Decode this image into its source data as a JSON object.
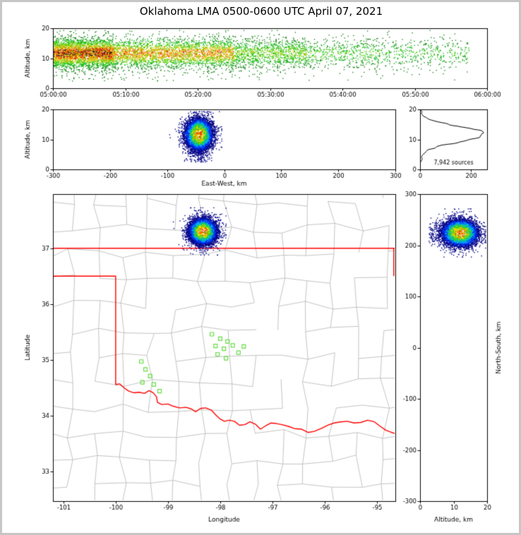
{
  "title": "Oklahoma LMA 0500-0600 UTC April 07, 2021",
  "colors": {
    "background": "#ffffff",
    "frame": "#c6c6c6",
    "axis": "#000000",
    "county_line": "#b4b4b4",
    "state_border": "#ff0000",
    "station_marker": "#66dd44",
    "histogram_line": "#000000",
    "spatial_palette": [
      "#000088",
      "#0033ee",
      "#00aaff",
      "#00cc88",
      "#44cc00",
      "#aadd00",
      "#ffee00",
      "#ffaa00",
      "#ff5500",
      "#ee0000"
    ],
    "time_palette": [
      "#007700",
      "#009900",
      "#00bb00",
      "#55cc00",
      "#99cc00",
      "#ddcc00",
      "#ffaa00",
      "#ff4400",
      "#dd0000",
      "#111111"
    ]
  },
  "panels": {
    "time_height": {
      "ylabel": "Altitude, km",
      "xtick_labels": [
        "05:00:00",
        "05:10:00",
        "05:20:00",
        "05:30:00",
        "05:40:00",
        "05:50:00",
        "06:00:00"
      ],
      "xtick_seconds": [
        0,
        600,
        1200,
        1800,
        2400,
        3000,
        3600
      ],
      "yticks": [
        0,
        10,
        20
      ],
      "xlim_seconds": [
        0,
        3600
      ],
      "ylim": [
        0,
        20
      ]
    },
    "east_west": {
      "ylabel": "Altitude, km",
      "xlabel": "East-West, km",
      "xticks": [
        -300,
        -200,
        -100,
        0,
        100,
        200,
        300
      ],
      "yticks": [
        0,
        10,
        20
      ],
      "xlim": [
        -300,
        300
      ],
      "ylim": [
        0,
        20
      ]
    },
    "alt_histogram": {
      "annotation": "7,942 sources",
      "xticks": [
        0,
        200
      ],
      "yticks": [
        0,
        10,
        20
      ],
      "xlim": [
        0,
        264
      ],
      "ylim": [
        0,
        20
      ]
    },
    "plan_view": {
      "xlabel": "Longitude",
      "ylabel": "Latitude",
      "xticks": [
        -101,
        -100,
        -99,
        -98,
        -97,
        -96,
        -95
      ],
      "yticks": [
        33,
        34,
        35,
        36,
        37
      ],
      "xlim": [
        -101.2,
        -94.65
      ],
      "ylim": [
        32.47,
        37.97
      ]
    },
    "north_south": {
      "xlabel": "Altitude, km",
      "ylabel": "North-South, km",
      "xticks": [
        0,
        10,
        20
      ],
      "yticks": [
        -300,
        -200,
        -100,
        0,
        100,
        200,
        300
      ],
      "xlim": [
        0,
        20
      ],
      "ylim": [
        -300,
        300
      ]
    }
  },
  "chart_data": {
    "type": "scatter",
    "title": "Oklahoma LMA 0500-0600 UTC April 07, 2021",
    "total_sources": 7942,
    "source_count_label": "7,942 sources",
    "network_origin": {
      "lon": -97.84,
      "lat": 35.28
    },
    "storm_cluster": {
      "center_lon": -98.34,
      "center_lat": 37.31,
      "center_east_west_km": -45,
      "center_north_south_km": 225,
      "sigma_east_west_km": 11,
      "sigma_north_south_km": 12,
      "alt_mean_km": 11.8,
      "alt_sigma_km": 2.5,
      "alt_range_km": [
        2,
        19.4
      ]
    },
    "time_profile_segments": [
      {
        "start_s": 0,
        "end_s": 500,
        "fraction": 0.4,
        "intensity": 1.0
      },
      {
        "start_s": 500,
        "end_s": 1500,
        "fraction": 0.36,
        "intensity": 0.8
      },
      {
        "start_s": 1500,
        "end_s": 2100,
        "fraction": 0.13,
        "intensity": 0.5
      },
      {
        "start_s": 2100,
        "end_s": 2700,
        "fraction": 0.06,
        "intensity": 0.38
      },
      {
        "start_s": 2700,
        "end_s": 3450,
        "fraction": 0.05,
        "intensity": 0.33
      }
    ],
    "altitude_histogram": {
      "peak_altitude_km": 12,
      "peak_count": 250,
      "bin_km": 0.25
    },
    "stations_lonlat": [
      [
        -99.51,
        34.97
      ],
      [
        -99.43,
        34.83
      ],
      [
        -99.34,
        34.71
      ],
      [
        -99.49,
        34.6
      ],
      [
        -99.27,
        34.56
      ],
      [
        -99.16,
        34.44
      ],
      [
        -98.16,
        35.46
      ],
      [
        -98.0,
        35.38
      ],
      [
        -97.86,
        35.33
      ],
      [
        -98.09,
        35.25
      ],
      [
        -97.93,
        35.2
      ],
      [
        -97.76,
        35.26
      ],
      [
        -98.05,
        35.1
      ],
      [
        -97.89,
        35.03
      ],
      [
        -97.65,
        35.13
      ],
      [
        -97.55,
        35.24
      ]
    ],
    "oklahoma_border": {
      "north_lat": 37.0,
      "panhandle_south_lat": 36.5,
      "west_meridian_lon": -100.0,
      "east_lon": -94.68,
      "east_lat_range": [
        36.5,
        37.0
      ],
      "red_river": [
        [
          -100.0,
          34.56
        ],
        [
          -99.92,
          34.57
        ],
        [
          -99.84,
          34.5
        ],
        [
          -99.75,
          34.44
        ],
        [
          -99.65,
          34.41
        ],
        [
          -99.55,
          34.42
        ],
        [
          -99.45,
          34.4
        ],
        [
          -99.36,
          34.45
        ],
        [
          -99.28,
          34.41
        ],
        [
          -99.22,
          34.34
        ],
        [
          -99.2,
          34.24
        ],
        [
          -99.12,
          34.2
        ],
        [
          -99.0,
          34.21
        ],
        [
          -98.9,
          34.17
        ],
        [
          -98.78,
          34.14
        ],
        [
          -98.65,
          34.15
        ],
        [
          -98.55,
          34.12
        ],
        [
          -98.47,
          34.07
        ],
        [
          -98.38,
          34.13
        ],
        [
          -98.28,
          34.14
        ],
        [
          -98.17,
          34.1
        ],
        [
          -98.08,
          34.01
        ],
        [
          -98.0,
          33.94
        ],
        [
          -97.92,
          33.9
        ],
        [
          -97.83,
          33.92
        ],
        [
          -97.73,
          33.9
        ],
        [
          -97.63,
          33.83
        ],
        [
          -97.53,
          33.84
        ],
        [
          -97.43,
          33.89
        ],
        [
          -97.33,
          33.85
        ],
        [
          -97.23,
          33.76
        ],
        [
          -97.13,
          33.82
        ],
        [
          -97.03,
          33.87
        ],
        [
          -96.93,
          33.86
        ],
        [
          -96.82,
          33.84
        ],
        [
          -96.7,
          33.81
        ],
        [
          -96.58,
          33.77
        ],
        [
          -96.45,
          33.76
        ],
        [
          -96.32,
          33.7
        ],
        [
          -96.2,
          33.72
        ],
        [
          -96.07,
          33.77
        ],
        [
          -95.94,
          33.83
        ],
        [
          -95.82,
          33.87
        ],
        [
          -95.7,
          33.89
        ],
        [
          -95.57,
          33.9
        ],
        [
          -95.44,
          33.87
        ],
        [
          -95.31,
          33.88
        ],
        [
          -95.18,
          33.92
        ],
        [
          -95.05,
          33.89
        ],
        [
          -94.94,
          33.81
        ],
        [
          -94.83,
          33.74
        ],
        [
          -94.72,
          33.7
        ],
        [
          -94.62,
          33.67
        ]
      ]
    },
    "county_grid": {
      "lon_step": 0.5,
      "lat_step": 0.46,
      "jitter_deg": 0.09,
      "skip_fraction": 0.2,
      "seed": 777
    }
  }
}
